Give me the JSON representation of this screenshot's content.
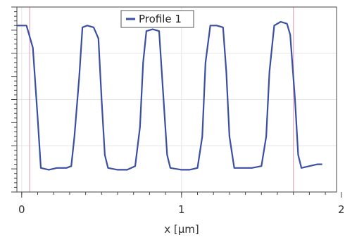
{
  "chart_data": {
    "type": "line",
    "xlabel": "x [µm]",
    "ylabel": "",
    "xlim": [
      -0.03,
      1.97
    ],
    "ylim": [
      0,
      1
    ],
    "x_ticks": [
      0,
      1,
      2
    ],
    "x_tick_labels": [
      "0",
      "1",
      "2"
    ],
    "grid": true,
    "legend_position": "top-center",
    "cursor_lines": [
      0.05,
      1.7
    ],
    "series": [
      {
        "name": "Profile 1",
        "color": "#3a4fa3",
        "points": [
          [
            -0.03,
            0.9
          ],
          [
            0.03,
            0.9
          ],
          [
            0.07,
            0.78
          ],
          [
            0.1,
            0.4
          ],
          [
            0.12,
            0.13
          ],
          [
            0.17,
            0.12
          ],
          [
            0.22,
            0.13
          ],
          [
            0.28,
            0.13
          ],
          [
            0.31,
            0.14
          ],
          [
            0.33,
            0.3
          ],
          [
            0.36,
            0.62
          ],
          [
            0.38,
            0.89
          ],
          [
            0.41,
            0.9
          ],
          [
            0.45,
            0.89
          ],
          [
            0.48,
            0.83
          ],
          [
            0.5,
            0.5
          ],
          [
            0.52,
            0.2
          ],
          [
            0.54,
            0.13
          ],
          [
            0.6,
            0.12
          ],
          [
            0.66,
            0.12
          ],
          [
            0.71,
            0.14
          ],
          [
            0.74,
            0.35
          ],
          [
            0.76,
            0.7
          ],
          [
            0.78,
            0.87
          ],
          [
            0.82,
            0.88
          ],
          [
            0.86,
            0.87
          ],
          [
            0.88,
            0.6
          ],
          [
            0.91,
            0.2
          ],
          [
            0.93,
            0.13
          ],
          [
            1.0,
            0.12
          ],
          [
            1.05,
            0.12
          ],
          [
            1.1,
            0.13
          ],
          [
            1.13,
            0.3
          ],
          [
            1.15,
            0.7
          ],
          [
            1.18,
            0.9
          ],
          [
            1.22,
            0.9
          ],
          [
            1.26,
            0.89
          ],
          [
            1.28,
            0.65
          ],
          [
            1.3,
            0.3
          ],
          [
            1.33,
            0.13
          ],
          [
            1.38,
            0.13
          ],
          [
            1.44,
            0.13
          ],
          [
            1.5,
            0.14
          ],
          [
            1.53,
            0.3
          ],
          [
            1.55,
            0.65
          ],
          [
            1.58,
            0.9
          ],
          [
            1.62,
            0.92
          ],
          [
            1.66,
            0.91
          ],
          [
            1.68,
            0.85
          ],
          [
            1.71,
            0.5
          ],
          [
            1.73,
            0.2
          ],
          [
            1.75,
            0.13
          ],
          [
            1.8,
            0.14
          ],
          [
            1.85,
            0.15
          ],
          [
            1.88,
            0.15
          ]
        ]
      }
    ]
  }
}
